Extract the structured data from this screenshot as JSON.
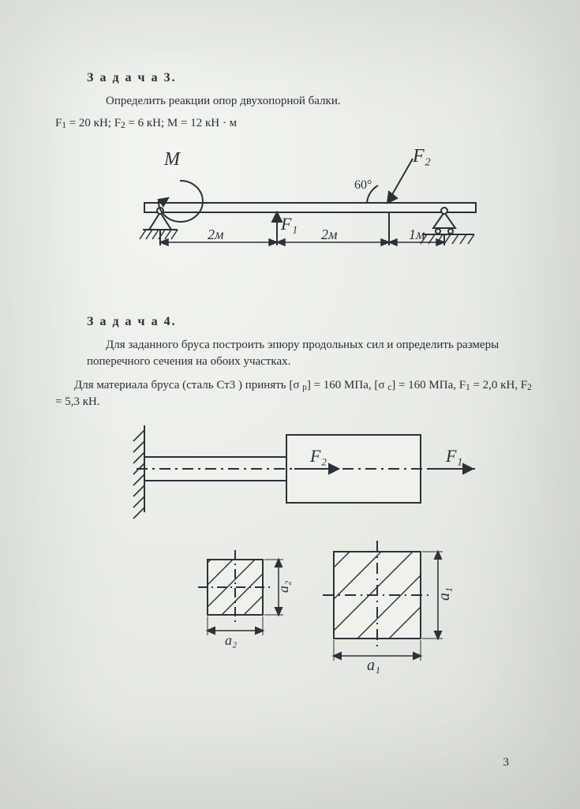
{
  "problem3": {
    "heading": "З а д а ч а  3.",
    "statement": "Определить реакции опор двухопорной балки.",
    "given_html": "F<sub>1</sub> = 20 кН;  F<sub>2</sub> = 6 кН;  M = 12 кН · м",
    "diagram": {
      "stroke": "#2d3137",
      "labels": {
        "M": "M",
        "F1": "F₁",
        "F2": "F₂",
        "angle": "60°",
        "d1": "2м",
        "d2": "2м",
        "d3": "1м"
      }
    }
  },
  "problem4": {
    "heading": "З а д а ч а  4.",
    "statement1": "Для заданного бруса построить эпюру продольных сил и определить размеры поперечного сечения на обоих участках.",
    "statement2_html": "Для материала бруса (сталь Ст3 ) принять [σ <sub>р</sub>] = 160 МПа, [σ <sub>с</sub>] = 160 МПа, F<sub>1</sub> = 2,0 кН, F<sub>2</sub> = 5,3 кН.",
    "diagram": {
      "stroke": "#2d3137",
      "labels": {
        "F1": "F₁",
        "F2": "F₂",
        "a1": "a₁",
        "a2": "a₂"
      }
    }
  },
  "pagenum": "3",
  "style": {
    "text_color": "#2d3137",
    "bg_color": "#eef1ec",
    "heading_fontsize": 16,
    "body_fontsize": 15,
    "svg_label_fontsize": 20,
    "svg_label_fontsize_italic": 22
  }
}
